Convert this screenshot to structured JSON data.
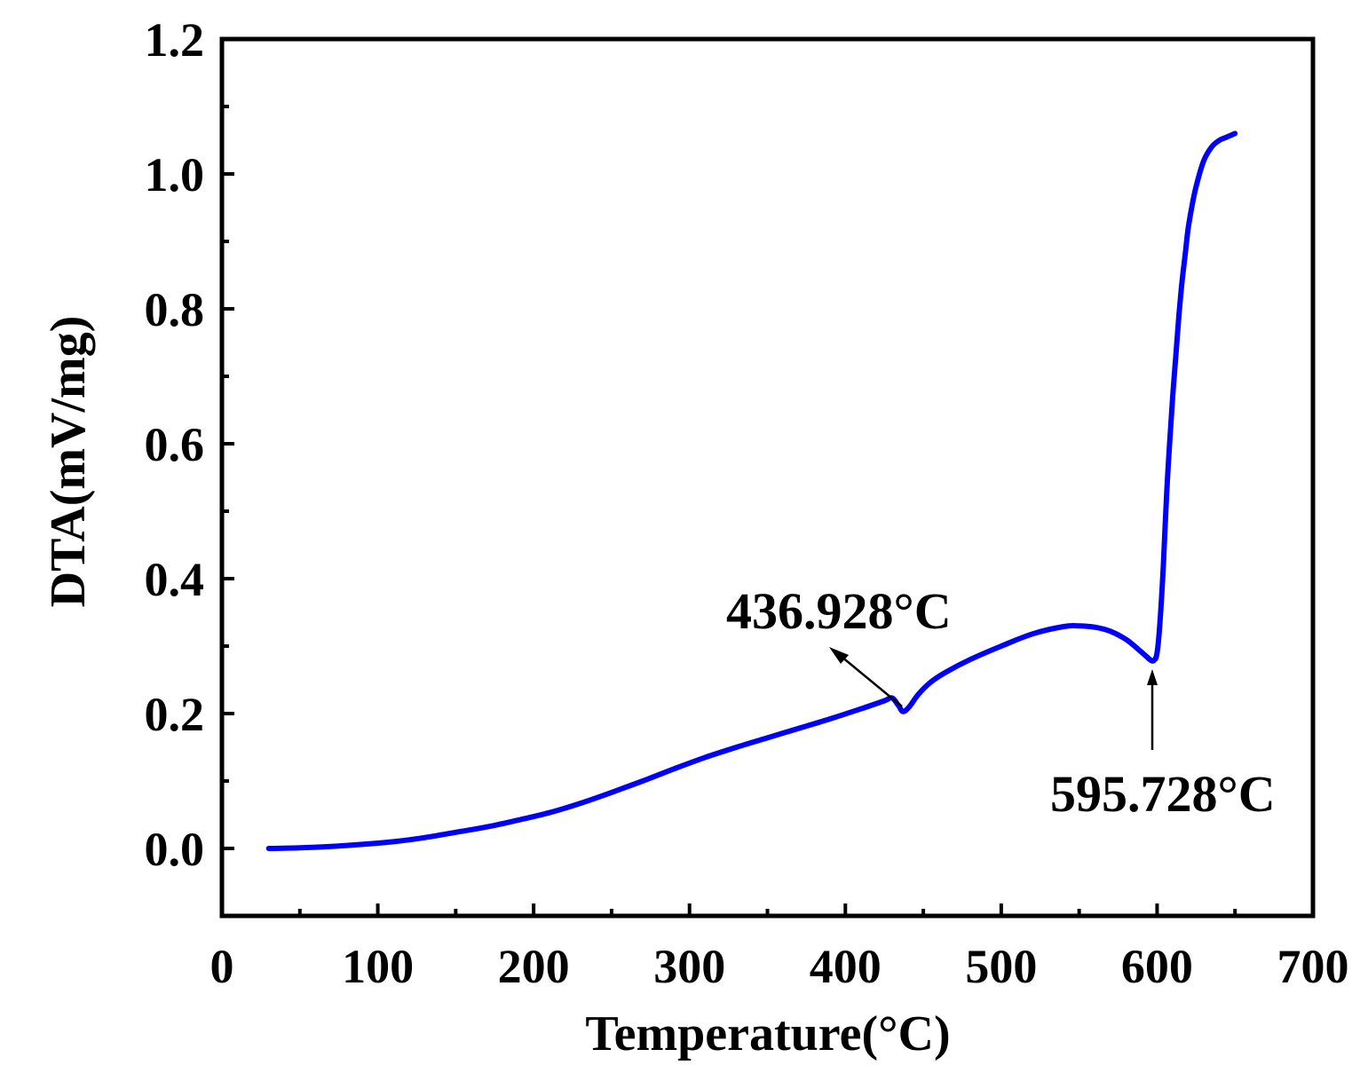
{
  "chart_data": {
    "type": "line",
    "title": "",
    "xlabel": "Temperature(°C)",
    "ylabel": "DTA(mV/mg)",
    "xlim": [
      0,
      700
    ],
    "ylim": [
      -0.1,
      1.2
    ],
    "xticks": [
      0,
      100,
      200,
      300,
      400,
      500,
      600,
      700
    ],
    "xtick_labels": [
      "0",
      "100",
      "200",
      "300",
      "400",
      "500",
      "600",
      "700"
    ],
    "yticks": [
      0.0,
      0.2,
      0.4,
      0.6,
      0.8,
      1.0,
      1.2
    ],
    "ytick_labels": [
      "0.0",
      "0.2",
      "0.4",
      "0.6",
      "0.8",
      "1.0",
      "1.2"
    ],
    "grid": false,
    "legend": "none",
    "series": [
      {
        "color": "#0000ff",
        "x": [
          30,
          50,
          70,
          90,
          110,
          130,
          150,
          170,
          190,
          210,
          230,
          250,
          270,
          290,
          310,
          330,
          350,
          370,
          390,
          410,
          425,
          430,
          434,
          437,
          441,
          447,
          455,
          465,
          480,
          500,
          520,
          540,
          550,
          560,
          570,
          580,
          588,
          593,
          596,
          598,
          600,
          602,
          604,
          606,
          608,
          610,
          612,
          614,
          616,
          618,
          620,
          623,
          626,
          630,
          635,
          640,
          645,
          650
        ],
        "y": [
          0.0,
          0.001,
          0.003,
          0.006,
          0.01,
          0.016,
          0.024,
          0.032,
          0.042,
          0.053,
          0.067,
          0.083,
          0.1,
          0.118,
          0.135,
          0.15,
          0.164,
          0.178,
          0.192,
          0.207,
          0.219,
          0.223,
          0.212,
          0.203,
          0.21,
          0.229,
          0.247,
          0.262,
          0.28,
          0.3,
          0.318,
          0.329,
          0.33,
          0.328,
          0.322,
          0.31,
          0.295,
          0.285,
          0.279,
          0.279,
          0.29,
          0.34,
          0.42,
          0.52,
          0.6,
          0.67,
          0.73,
          0.79,
          0.84,
          0.88,
          0.92,
          0.96,
          0.99,
          1.02,
          1.04,
          1.05,
          1.055,
          1.06
        ]
      }
    ],
    "annotations": [
      {
        "text": "436.928°C",
        "x": 436.928,
        "y": 0.203
      },
      {
        "text": "595.728°C",
        "x": 595.728,
        "y": 0.279
      }
    ]
  }
}
